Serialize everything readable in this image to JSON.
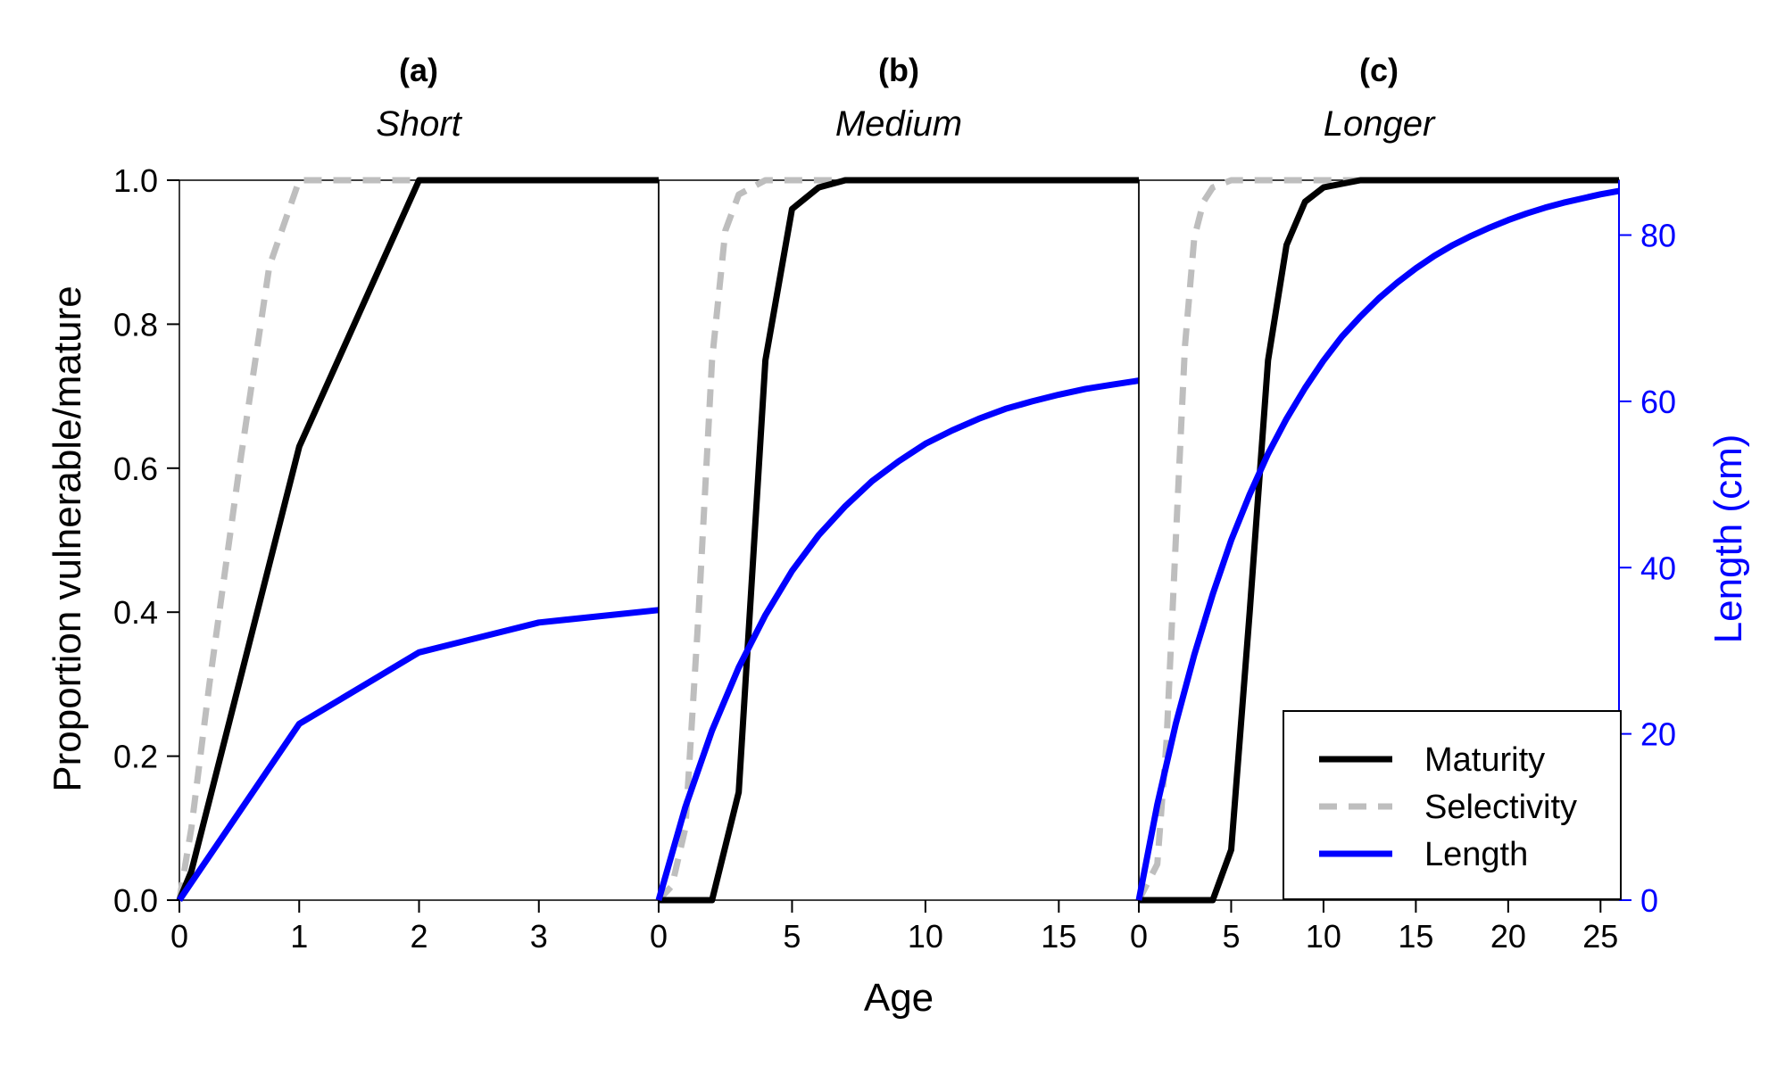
{
  "figure": {
    "xlabel": "Age",
    "ylabel_left": "Proportion vulnerable/mature",
    "ylabel_right": "Length (cm)",
    "legend_position": "bottom-right",
    "colors": {
      "maturity": "#000000",
      "selectivity": "#bebebe",
      "length": "#0000ff",
      "axis": "#000000",
      "right_axis": "#0000ff"
    }
  },
  "legend": {
    "maturity": "Maturity",
    "selectivity": "Selectivity",
    "length": "Length"
  },
  "left_axis": {
    "ticks": [
      0.0,
      0.2,
      0.4,
      0.6,
      0.8,
      1.0
    ],
    "tick_labels": [
      "0.0",
      "0.2",
      "0.4",
      "0.6",
      "0.8",
      "1.0"
    ]
  },
  "right_axis": {
    "ticks": [
      0,
      20,
      40,
      60,
      80
    ],
    "tick_labels": [
      "0",
      "20",
      "40",
      "60",
      "80"
    ],
    "ylim": [
      0,
      86.6
    ]
  },
  "chart_data": [
    {
      "type": "line",
      "panel_label": "(a)",
      "title": "Short",
      "xlim": [
        0,
        4
      ],
      "ylim": [
        0,
        1
      ],
      "x_ticks": [
        0,
        1,
        2,
        3
      ],
      "x_tick_labels": [
        "0",
        "1",
        "2",
        "3"
      ],
      "series": [
        {
          "name": "Maturity",
          "axis": "left",
          "style": "solid",
          "x": [
            0,
            0.1,
            1,
            2,
            3,
            4
          ],
          "values": [
            0,
            0.04,
            0.63,
            1.0,
            1.0,
            1.0
          ]
        },
        {
          "name": "Selectivity",
          "axis": "left",
          "style": "dashed",
          "x": [
            0,
            0.1,
            0.25,
            0.5,
            0.75,
            1,
            2,
            3,
            4
          ],
          "values": [
            0,
            0.1,
            0.3,
            0.6,
            0.88,
            1.0,
            1.0,
            1.0,
            1.0
          ]
        },
        {
          "name": "Length",
          "axis": "right",
          "style": "solid",
          "x": [
            0,
            1,
            2,
            3,
            4
          ],
          "values": [
            0,
            21.2,
            29.8,
            33.4,
            34.9
          ]
        }
      ]
    },
    {
      "type": "line",
      "panel_label": "(b)",
      "title": "Medium",
      "xlim": [
        0,
        18
      ],
      "ylim": [
        0,
        1
      ],
      "x_ticks": [
        0,
        5,
        10,
        15
      ],
      "x_tick_labels": [
        "0",
        "5",
        "10",
        "15"
      ],
      "series": [
        {
          "name": "Maturity",
          "axis": "left",
          "style": "solid",
          "x": [
            0,
            1,
            2,
            3,
            4,
            5,
            6,
            7,
            8,
            9,
            10,
            12,
            14,
            16,
            18
          ],
          "values": [
            0,
            0,
            0,
            0.15,
            0.75,
            0.96,
            0.99,
            1.0,
            1.0,
            1.0,
            1.0,
            1.0,
            1.0,
            1.0,
            1.0
          ]
        },
        {
          "name": "Selectivity",
          "axis": "left",
          "style": "dashed",
          "x": [
            0,
            0.5,
            1,
            1.5,
            2,
            2.5,
            3,
            3.5,
            4,
            5,
            6,
            8,
            10,
            12,
            14,
            16,
            18
          ],
          "values": [
            0,
            0.02,
            0.1,
            0.4,
            0.75,
            0.93,
            0.98,
            0.99,
            1.0,
            1.0,
            1.0,
            1.0,
            1.0,
            1.0,
            1.0,
            1.0,
            1.0
          ]
        },
        {
          "name": "Length",
          "axis": "right",
          "style": "solid",
          "x": [
            0,
            1,
            2,
            3,
            4,
            5,
            6,
            7,
            8,
            9,
            10,
            11,
            12,
            13,
            14,
            15,
            16,
            17,
            18
          ],
          "values": [
            0,
            11.2,
            20.4,
            28.0,
            34.3,
            39.6,
            43.9,
            47.4,
            50.4,
            52.8,
            54.9,
            56.5,
            57.9,
            59.1,
            60.0,
            60.8,
            61.5,
            62.0,
            62.5
          ]
        }
      ]
    },
    {
      "type": "line",
      "panel_label": "(c)",
      "title": "Longer",
      "xlim": [
        0,
        26
      ],
      "ylim": [
        0,
        1
      ],
      "x_ticks": [
        0,
        5,
        10,
        15,
        20,
        25
      ],
      "x_tick_labels": [
        "0",
        "5",
        "10",
        "15",
        "20",
        "25"
      ],
      "series": [
        {
          "name": "Maturity",
          "axis": "left",
          "style": "solid",
          "x": [
            0,
            1,
            2,
            3,
            4,
            5,
            6,
            7,
            8,
            9,
            10,
            11,
            12,
            14,
            16,
            18,
            20,
            22,
            24,
            26
          ],
          "values": [
            0,
            0,
            0,
            0,
            0,
            0.07,
            0.4,
            0.75,
            0.91,
            0.97,
            0.99,
            0.995,
            1.0,
            1.0,
            1.0,
            1.0,
            1.0,
            1.0,
            1.0,
            1.0
          ]
        },
        {
          "name": "Selectivity",
          "axis": "left",
          "style": "dashed",
          "x": [
            0,
            1,
            1.5,
            2,
            2.5,
            3,
            3.5,
            4,
            5,
            6,
            8,
            10,
            12,
            14,
            16,
            18,
            20,
            22,
            24,
            26
          ],
          "values": [
            0,
            0.05,
            0.22,
            0.5,
            0.77,
            0.92,
            0.97,
            0.99,
            1.0,
            1.0,
            1.0,
            1.0,
            1.0,
            1.0,
            1.0,
            1.0,
            1.0,
            1.0,
            1.0,
            1.0
          ]
        },
        {
          "name": "Length",
          "axis": "right",
          "style": "solid",
          "x": [
            0,
            1,
            2,
            3,
            4,
            5,
            6,
            7,
            8,
            9,
            10,
            11,
            12,
            13,
            14,
            15,
            16,
            17,
            18,
            19,
            20,
            21,
            22,
            23,
            24,
            25,
            26
          ],
          "values": [
            0,
            11.5,
            21.2,
            29.5,
            36.8,
            43.3,
            48.8,
            53.7,
            57.9,
            61.6,
            64.9,
            67.8,
            70.2,
            72.4,
            74.3,
            76.0,
            77.5,
            78.8,
            79.9,
            80.9,
            81.8,
            82.6,
            83.3,
            83.9,
            84.4,
            84.9,
            85.3
          ]
        }
      ]
    }
  ]
}
